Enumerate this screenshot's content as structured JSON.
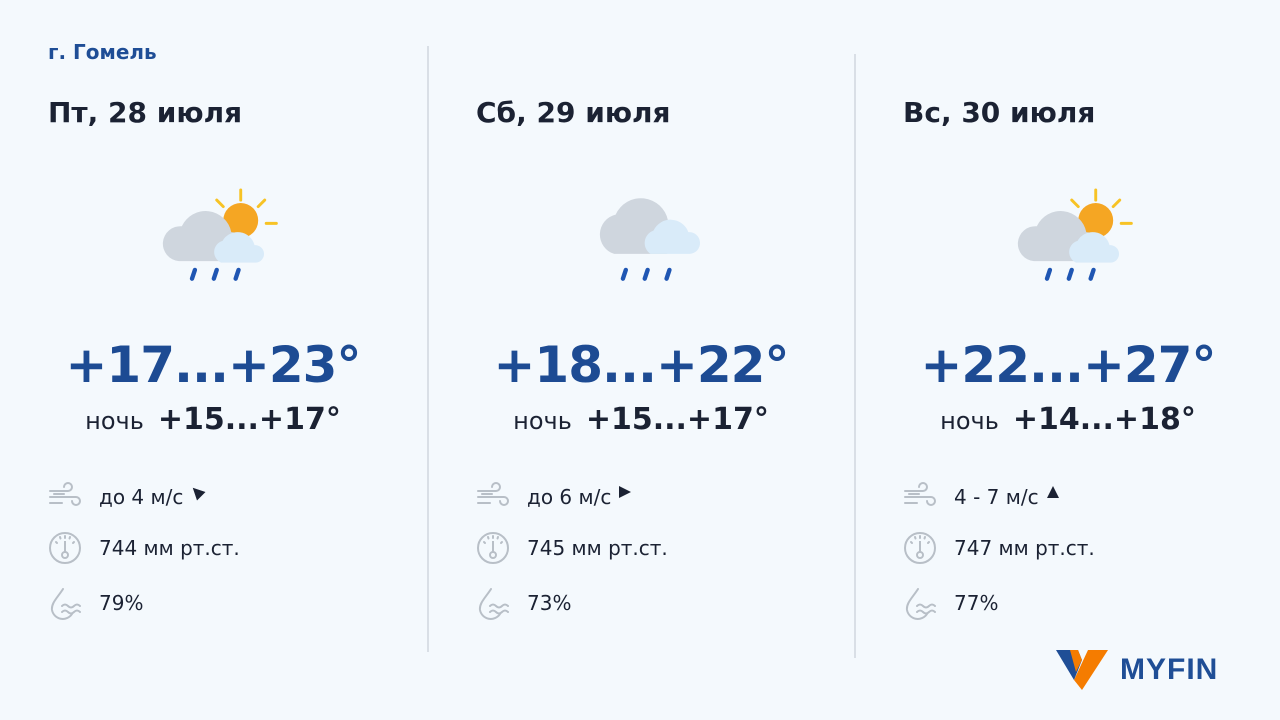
{
  "city": "г. Гомель",
  "days": [
    {
      "date": "Пт, 28 июля",
      "icon": "sun-cloud-rain-icon",
      "temp": "+17...+23°",
      "night_label": "ночь",
      "night": "+15...+17°",
      "wind": "до 4 м/с",
      "wind_direction": "northwest",
      "pressure": "744 мм рт.ст.",
      "humidity": "79%"
    },
    {
      "date": "Сб, 29 июля",
      "icon": "cloud-rain-icon",
      "temp": "+18...+22°",
      "night_label": "ночь",
      "night": "+15...+17°",
      "wind": "до 6 м/с",
      "wind_direction": "east",
      "pressure": "745 мм рт.ст.",
      "humidity": "73%"
    },
    {
      "date": "Вс, 30 июля",
      "icon": "sun-cloud-rain-icon",
      "temp": "+22...+27°",
      "night_label": "ночь",
      "night": "+14...+18°",
      "wind": "4 - 7 м/с",
      "wind_direction": "north",
      "pressure": "747 мм рт.ст.",
      "humidity": "77%"
    }
  ],
  "logo": {
    "text": "MYFIN",
    "colors": {
      "blue": "#1f4e96",
      "orange": "#f57c00"
    }
  },
  "colors": {
    "accent": "#1d4b93",
    "rain": "#1f56b3",
    "sun": "#f5a623"
  }
}
